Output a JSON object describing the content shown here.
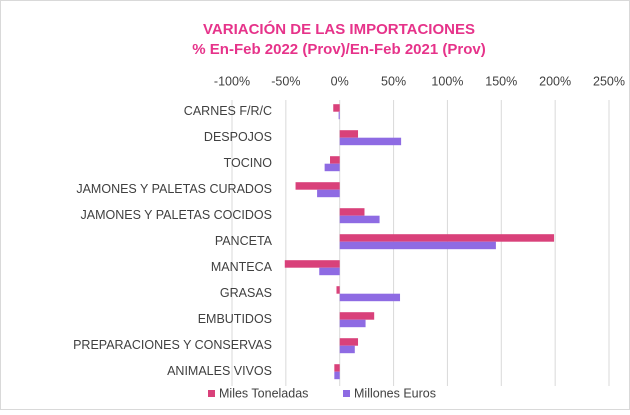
{
  "chart_data": {
    "type": "bar",
    "orientation": "horizontal",
    "title": "VARIACIÓN DE LAS IMPORTACIONES",
    "subtitle": "% En-Feb 2022 (Prov)/En-Feb 2021 (Prov)",
    "categories": [
      "CARNES F/R/C",
      "DESPOJOS",
      "TOCINO",
      "JAMONES Y PALETAS CURADOS",
      "JAMONES Y PALETAS COCIDOS",
      "PANCETA",
      "MANTECA",
      "GRASAS",
      "EMBUTIDOS",
      "PREPARACIONES Y CONSERVAS",
      "ANIMALES VIVOS"
    ],
    "series": [
      {
        "name": "Miles Toneladas",
        "color": "#d9417a",
        "values": [
          -6,
          17,
          -9,
          -41,
          23,
          199,
          -51,
          -3,
          32,
          17,
          -5
        ]
      },
      {
        "name": "Millones Euros",
        "color": "#8e6be3",
        "values": [
          -1,
          57,
          -14,
          -21,
          37,
          145,
          -19,
          56,
          24,
          14,
          -5
        ]
      }
    ],
    "xlim": [
      -100,
      250
    ],
    "xticks": [
      {
        "value": -100,
        "label": "-100%"
      },
      {
        "value": -50,
        "label": "-50%"
      },
      {
        "value": 0,
        "label": "0%"
      },
      {
        "value": 50,
        "label": "50%"
      },
      {
        "value": 100,
        "label": "100%"
      },
      {
        "value": 150,
        "label": "150%"
      },
      {
        "value": 200,
        "label": "200%"
      },
      {
        "value": 250,
        "label": "250%"
      }
    ],
    "grid": true,
    "legend": "bottom"
  }
}
